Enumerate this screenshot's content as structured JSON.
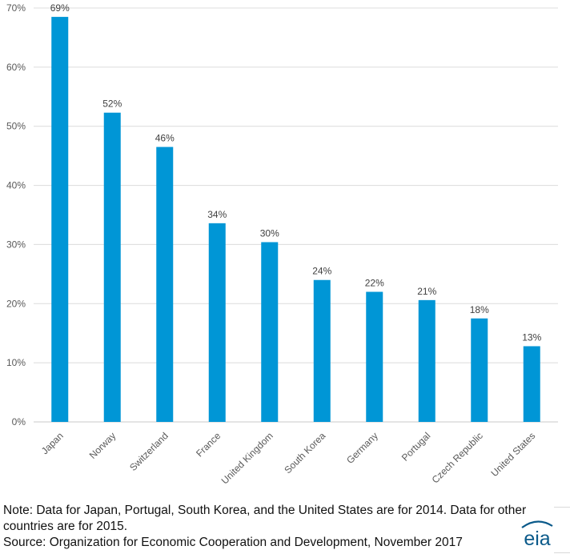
{
  "chart_data": {
    "type": "bar",
    "title": "",
    "xlabel": "",
    "ylabel": "",
    "categories": [
      "Japan",
      "Norway",
      "Switzerland",
      "France",
      "United Kingdom",
      "South Korea",
      "Germany",
      "Portugal",
      "Czech Republic",
      "United States"
    ],
    "values": [
      69,
      52,
      46,
      34,
      30,
      24,
      22,
      21,
      18,
      13
    ],
    "bar_heights_percent": [
      68.5,
      52.3,
      46.5,
      33.6,
      30.4,
      24.0,
      22.0,
      20.6,
      17.5,
      12.8
    ],
    "data_labels": [
      "69%",
      "52%",
      "46%",
      "34%",
      "30%",
      "24%",
      "22%",
      "21%",
      "18%",
      "13%"
    ],
    "ylim": [
      0,
      70
    ],
    "yticks": [
      0,
      10,
      20,
      30,
      40,
      50,
      60,
      70
    ],
    "ytick_labels": [
      "0%",
      "10%",
      "20%",
      "30%",
      "40%",
      "50%",
      "60%",
      "70%"
    ],
    "grid": true,
    "bar_color": "#0096d6"
  },
  "footnote": {
    "line1": "Note:  Data for Japan, Portugal, South Korea, and the United States are for 2014. Data for other",
    "line2": "countries are for 2015.",
    "line3": "Source: Organization for Economic Cooperation and Development, November 2017"
  },
  "logo": {
    "text": "eia",
    "icon": "eia-logo-icon",
    "color": "#0b5a8a"
  }
}
